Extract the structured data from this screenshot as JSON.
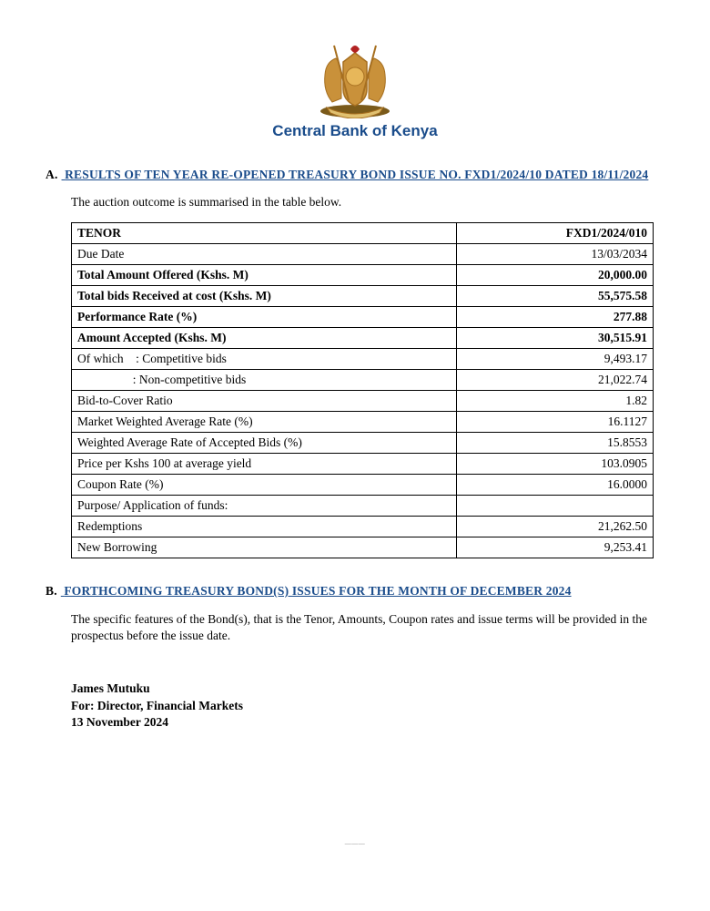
{
  "org_name": "Central Bank of Kenya",
  "headingA": "RESULTS OF TEN YEAR RE-OPENED TREASURY BOND ISSUE NO. FXD1/2024/10 DATED 18/11/2024",
  "intro": "The auction outcome is summarised in the table below.",
  "table": {
    "header_label": "TENOR",
    "header_value": "FXD1/2024/010",
    "rows": [
      {
        "label": "Due Date",
        "value": "13/03/2034",
        "bold": false
      },
      {
        "label": "Total Amount Offered (Kshs. M)",
        "value": "20,000.00",
        "bold": true
      },
      {
        "label": "Total bids Received at cost (Kshs. M)",
        "value": "55,575.58",
        "bold": true
      },
      {
        "label": "Performance Rate (%)",
        "value": "277.88",
        "bold": true
      },
      {
        "label": "Amount Accepted (Kshs. M)",
        "value": "30,515.91",
        "bold": true
      },
      {
        "label": "Of which : Competitive bids",
        "value": "9,493.17",
        "bold": false
      },
      {
        "label": "     : Non-competitive bids",
        "value": "21,022.74",
        "bold": false
      },
      {
        "label": "Bid-to-Cover Ratio",
        "value": "1.82",
        "bold": false
      },
      {
        "label": "Market Weighted Average Rate (%)",
        "value": "16.1127",
        "bold": false
      },
      {
        "label": "Weighted Average Rate of Accepted Bids (%)",
        "value": "15.8553",
        "bold": false
      },
      {
        "label": "Price per Kshs 100 at average yield",
        "value": "103.0905",
        "bold": false
      },
      {
        "label": "Coupon Rate (%)",
        "value": "16.0000",
        "bold": false
      },
      {
        "label": "Purpose/ Application of funds:",
        "value": "",
        "bold": false
      },
      {
        "label": "Redemptions",
        "value": "21,262.50",
        "bold": false
      },
      {
        "label": "New Borrowing",
        "value": "9,253.41",
        "bold": false
      }
    ]
  },
  "headingB": "FORTHCOMING TREASURY BOND(S) ISSUES FOR THE MONTH OF DECEMBER 2024",
  "bodyB": "The specific features of the Bond(s), that is the Tenor, Amounts, Coupon rates and issue terms will be provided in the prospectus before the issue date.",
  "signature": {
    "name": "James Mutuku",
    "title": "For: Director, Financial Markets",
    "date": "13 November 2024"
  },
  "colors": {
    "heading_blue": "#1a4c8b",
    "crest_gold": "#c9913a",
    "crest_gold_dark": "#a66f20",
    "crest_red": "#b22222"
  }
}
